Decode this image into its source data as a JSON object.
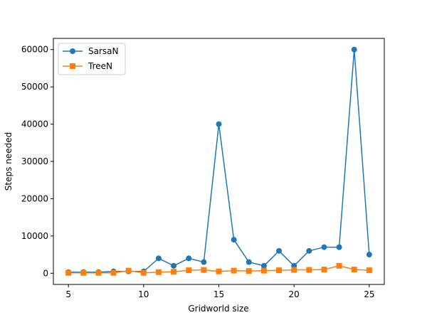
{
  "chart_data": {
    "type": "line",
    "title": "",
    "xlabel": "Gridworld size",
    "ylabel": "Steps needed",
    "x": [
      5,
      6,
      7,
      8,
      9,
      10,
      11,
      12,
      13,
      14,
      15,
      16,
      17,
      18,
      19,
      20,
      21,
      22,
      23,
      24,
      25
    ],
    "xlim": [
      4.0,
      26.0
    ],
    "ylim": [
      -3000,
      63000
    ],
    "xticks": [
      5,
      10,
      15,
      20,
      25
    ],
    "yticks": [
      0,
      10000,
      20000,
      30000,
      40000,
      50000,
      60000
    ],
    "grid": false,
    "legend_position": "top-left",
    "series": [
      {
        "name": "SarsaN",
        "color": "#1f77b4",
        "marker": "circle",
        "values": [
          300,
          300,
          300,
          500,
          500,
          500,
          4000,
          2000,
          4000,
          3000,
          40000,
          9000,
          3000,
          2000,
          6000,
          2000,
          6000,
          7000,
          7000,
          60000,
          5000
        ]
      },
      {
        "name": "TreeN",
        "color": "#ff7f0e",
        "marker": "square",
        "values": [
          100,
          100,
          100,
          100,
          700,
          100,
          300,
          400,
          800,
          900,
          500,
          700,
          600,
          700,
          800,
          900,
          900,
          1000,
          2000,
          1000,
          800
        ]
      }
    ]
  }
}
